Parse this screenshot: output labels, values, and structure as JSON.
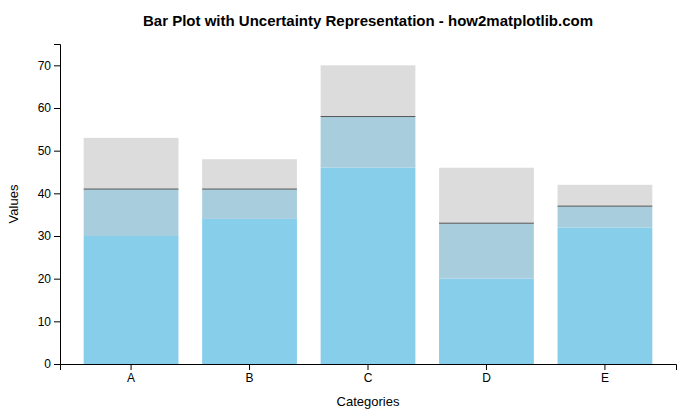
{
  "chart_data": {
    "type": "bar",
    "title": "Bar Plot with Uncertainty Representation - how2matplotlib.com",
    "x_label": "Categories",
    "y_label": "Values",
    "categories": [
      "A",
      "B",
      "C",
      "D",
      "E"
    ],
    "series": [
      {
        "color": "#87CEEB",
        "values": [
          30,
          34,
          46,
          20,
          32
        ]
      },
      {
        "color": "#A8CEDE",
        "values": [
          11,
          7,
          12,
          13,
          5
        ]
      },
      {
        "color": "#DCDCDC",
        "values": [
          12,
          7,
          12,
          13,
          5
        ]
      }
    ],
    "stacked": true,
    "ylim": [
      0,
      75
    ],
    "yticks": [
      0,
      10,
      20,
      30,
      40,
      50,
      60,
      70
    ],
    "grid": false
  }
}
